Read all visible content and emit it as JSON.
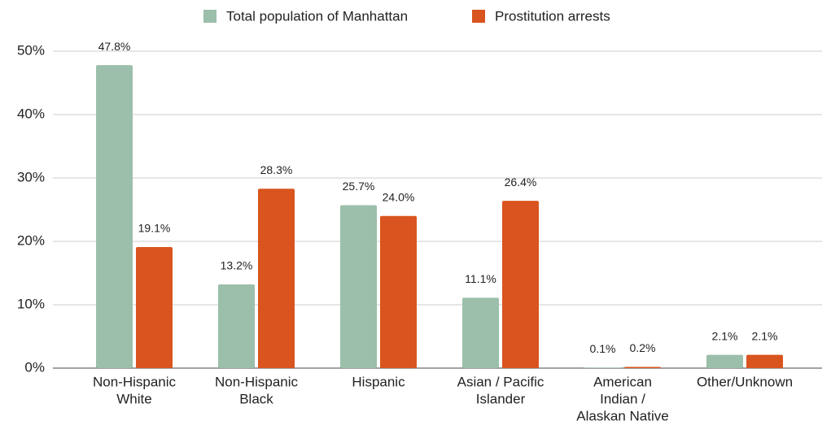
{
  "chart_data": {
    "type": "bar",
    "categories": [
      [
        "Non-Hispanic",
        "White"
      ],
      [
        "Non-Hispanic",
        "Black"
      ],
      [
        "Hispanic"
      ],
      [
        "Asian / Pacific",
        "Islander"
      ],
      [
        "American",
        "Indian /",
        "Alaskan Native"
      ],
      [
        "Other/Unknown"
      ]
    ],
    "series": [
      {
        "name": "Total population of Manhattan",
        "color": "#9bbfaa",
        "values": [
          47.8,
          13.2,
          25.7,
          11.1,
          0.1,
          2.1
        ],
        "value_labels": [
          "47.8%",
          "13.2%",
          "25.7%",
          "11.1%",
          "0.1%",
          "2.1%"
        ]
      },
      {
        "name": "Prostitution arrests",
        "color": "#d9541e",
        "values": [
          19.1,
          28.3,
          24.0,
          26.4,
          0.2,
          2.1
        ],
        "value_labels": [
          "19.1%",
          "28.3%",
          "24.0%",
          "26.4%",
          "0.2%",
          "2.1%"
        ]
      }
    ],
    "ylim": [
      0,
      50
    ],
    "yticks": [
      {
        "value": 0,
        "label": "0%"
      },
      {
        "value": 10,
        "label": "10%"
      },
      {
        "value": 20,
        "label": "20%"
      },
      {
        "value": 30,
        "label": "30%"
      },
      {
        "value": 40,
        "label": "40%"
      },
      {
        "value": 50,
        "label": "50%"
      }
    ],
    "grid": true,
    "legend": "top"
  }
}
